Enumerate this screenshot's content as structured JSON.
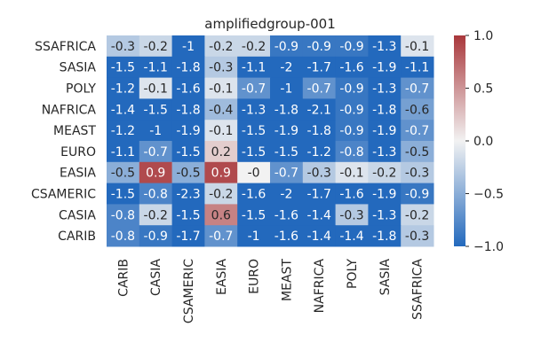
{
  "chart_data": {
    "type": "heatmap",
    "title": "amplifiedgroup-001",
    "xlabel": "",
    "ylabel": "",
    "x_categories": [
      "CARIB",
      "CASIA",
      "CSAMERIC",
      "EASIA",
      "EURO",
      "MEAST",
      "NAFRICA",
      "POLY",
      "SASIA",
      "SSAFRICA"
    ],
    "y_categories": [
      "SSAFRICA",
      "SASIA",
      "POLY",
      "NAFRICA",
      "MEAST",
      "EURO",
      "EASIA",
      "CSAMERIC",
      "CASIA",
      "CARIB"
    ],
    "values": [
      [
        -0.3,
        -0.2,
        -1,
        -0.2,
        -0.2,
        -0.9,
        -0.9,
        -0.9,
        -1.3,
        -0.1
      ],
      [
        -1.5,
        -1.1,
        -1.8,
        -0.3,
        -1.1,
        -2,
        -1.7,
        -1.6,
        -1.9,
        -1.1
      ],
      [
        -1.2,
        -0.1,
        -1.6,
        -0.1,
        -0.7,
        -1,
        -0.7,
        -0.9,
        -1.3,
        -0.7
      ],
      [
        -1.4,
        -1.5,
        -1.8,
        -0.4,
        -1.3,
        -1.8,
        -2.1,
        -0.9,
        -1.8,
        -0.6
      ],
      [
        -1.2,
        -1,
        -1.9,
        -0.1,
        -1.5,
        -1.9,
        -1.8,
        -0.9,
        -1.9,
        -0.7
      ],
      [
        -1.1,
        -0.7,
        -1.5,
        0.2,
        -1.5,
        -1.5,
        -1.2,
        -0.8,
        -1.3,
        -0.5
      ],
      [
        -0.5,
        0.9,
        -0.5,
        0.9,
        0,
        -0.7,
        -0.3,
        -0.1,
        -0.2,
        -0.3
      ],
      [
        -1.5,
        -0.8,
        -2.3,
        -0.2,
        -1.6,
        -2,
        -1.7,
        -1.6,
        -1.9,
        -0.9
      ],
      [
        -0.8,
        -0.2,
        -1.5,
        0.6,
        -1.5,
        -1.6,
        -1.4,
        -0.3,
        -1.3,
        -0.2
      ],
      [
        -0.8,
        -0.9,
        -1.7,
        -0.7,
        -1,
        -1.6,
        -1.4,
        -1.4,
        -1.8,
        -0.3
      ]
    ],
    "cell_labels": [
      [
        "-0.3",
        "-0.2",
        "-1",
        "-0.2",
        "-0.2",
        "-0.9",
        "-0.9",
        "-0.9",
        "-1.3",
        "-0.1"
      ],
      [
        "-1.5",
        "-1.1",
        "-1.8",
        "-0.3",
        "-1.1",
        "-2",
        "-1.7",
        "-1.6",
        "-1.9",
        "-1.1"
      ],
      [
        "-1.2",
        "-0.1",
        "-1.6",
        "-0.1",
        "-0.7",
        "-1",
        "-0.7",
        "-0.9",
        "-1.3",
        "-0.7"
      ],
      [
        "-1.4",
        "-1.5",
        "-1.8",
        "-0.4",
        "-1.3",
        "-1.8",
        "-2.1",
        "-0.9",
        "-1.8",
        "-0.6"
      ],
      [
        "-1.2",
        "-1",
        "-1.9",
        "-0.1",
        "-1.5",
        "-1.9",
        "-1.8",
        "-0.9",
        "-1.9",
        "-0.7"
      ],
      [
        "-1.1",
        "-0.7",
        "-1.5",
        "0.2",
        "-1.5",
        "-1.5",
        "-1.2",
        "-0.8",
        "-1.3",
        "-0.5"
      ],
      [
        "-0.5",
        "0.9",
        "-0.5",
        "0.9",
        "-0",
        "-0.7",
        "-0.3",
        "-0.1",
        "-0.2",
        "-0.3"
      ],
      [
        "-1.5",
        "-0.8",
        "-2.3",
        "-0.2",
        "-1.6",
        "-2",
        "-1.7",
        "-1.6",
        "-1.9",
        "-0.9"
      ],
      [
        "-0.8",
        "-0.2",
        "-1.5",
        "0.6",
        "-1.5",
        "-1.6",
        "-1.4",
        "-0.3",
        "-1.3",
        "-0.2"
      ],
      [
        "-0.8",
        "-0.9",
        "-1.7",
        "-0.7",
        "-1",
        "-1.6",
        "-1.4",
        "-1.4",
        "-1.8",
        "-0.3"
      ]
    ],
    "colorbar": {
      "vmin": -1.0,
      "vmax": 1.0,
      "ticks": [
        1.0,
        0.5,
        0.0,
        -0.5,
        -1.0
      ],
      "tick_labels": [
        "1.0",
        "0.5",
        "0.0",
        "−0.5",
        "−1.0"
      ]
    },
    "colormap": {
      "name": "vlag",
      "low": "#2369bd",
      "mid": "#f2f2f2",
      "high": "#a9373b"
    },
    "grid": false,
    "legend": "colorbar-right"
  }
}
